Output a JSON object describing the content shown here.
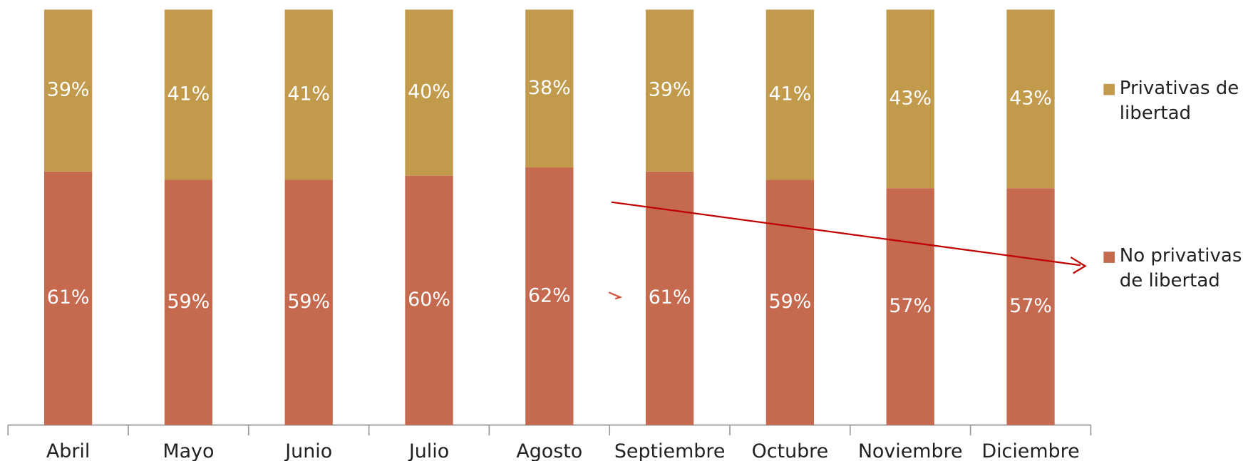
{
  "chart_data": {
    "type": "stacked_bar",
    "categories": [
      "Abril",
      "Mayo",
      "Junio",
      "Julio",
      "Agosto",
      "Septiembre",
      "Octubre",
      "Noviembre",
      "Diciembre"
    ],
    "series": [
      {
        "name": "No privativas de libertad",
        "color": "#c5694f",
        "values": [
          61,
          59,
          59,
          60,
          62,
          61,
          59,
          57,
          57
        ],
        "value_labels": [
          "61%",
          "59%",
          "59%",
          "60%",
          "62%",
          "61%",
          "59%",
          "57%",
          "57%"
        ]
      },
      {
        "name": "Privativas de libertad",
        "color": "#c19a4c",
        "values": [
          39,
          41,
          41,
          40,
          38,
          39,
          41,
          43,
          43
        ],
        "value_labels": [
          "39%",
          "41%",
          "41%",
          "40%",
          "38%",
          "39%",
          "41%",
          "43%",
          "43%"
        ]
      }
    ],
    "ylim": [
      0,
      100
    ],
    "legend": "right"
  }
}
